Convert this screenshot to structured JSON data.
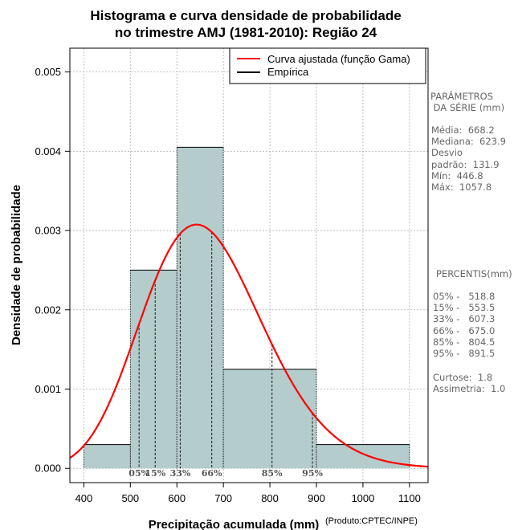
{
  "chart_data": {
    "type": "bar",
    "title_line1": "Histograma e curva densidade de probabilidade",
    "title_line2": "no trimestre AMJ (1981-2010): Região 24",
    "xlabel": "Precipitação acumulada (mm)",
    "ylabel": "Densidade de probabilidade",
    "credit": "(Produto:CPTEC/INPE)",
    "xlim": [
      370,
      1140
    ],
    "ylim": [
      -0.00018,
      0.0053
    ],
    "x_ticks": [
      400,
      500,
      600,
      700,
      800,
      900,
      1000,
      1100
    ],
    "x_tick_labels": [
      "400",
      "500",
      "600",
      "700",
      "800",
      "900",
      "1000",
      "1100"
    ],
    "y_ticks": [
      0,
      0.001,
      0.002,
      0.003,
      0.004,
      0.005
    ],
    "y_tick_labels": [
      "0.000",
      "0.001",
      "0.002",
      "0.003",
      "0.004",
      "0.005"
    ],
    "grid": true,
    "bins": [
      {
        "from": 400,
        "to": 500,
        "density": 0.0003
      },
      {
        "from": 500,
        "to": 600,
        "density": 0.0025
      },
      {
        "from": 600,
        "to": 700,
        "density": 0.00405
      },
      {
        "from": 700,
        "to": 900,
        "density": 0.00125
      },
      {
        "from": 900,
        "to": 1100,
        "density": 0.0003
      }
    ],
    "gamma_curve": {
      "mean": 668.2,
      "sd": 131.9
    },
    "legend": {
      "position": "top-right",
      "entries": [
        {
          "label": "Curva ajustada (função Gama)",
          "color": "#ff0000"
        },
        {
          "label": "Empírica",
          "color": "#000000"
        }
      ]
    },
    "percentile_markers": [
      {
        "label": "05%",
        "value": 518.8
      },
      {
        "label": "15%",
        "value": 553.5
      },
      {
        "label": "33%",
        "value": 607.3
      },
      {
        "label": "66%",
        "value": 675.0
      },
      {
        "label": "85%",
        "value": 804.5
      },
      {
        "label": "95%",
        "value": 891.5
      }
    ],
    "colors": {
      "bar_fill": "#b4cccc",
      "curve": "#ff0000",
      "grid": "#b0b0b0",
      "marker_text": "#555555"
    }
  },
  "side_panel": {
    "params_title_1": "PARÂMETROS",
    "params_title_2": " DA SÉRIE (mm)",
    "media": "Média:  668.2",
    "mediana": "Mediana:  623.9",
    "desvio_1": "Desvio",
    "desvio_2": "padrão:  131.9",
    "min": "Mín:  446.8",
    "max": "Máx:  1057.8",
    "perc_title": "PERCENTIS(mm)",
    "p05": "05% -   518.8",
    "p15": "15% -   553.5",
    "p33": "33% -   607.3",
    "p66": "66% -   675.0",
    "p85": "85% -   804.5",
    "p95": "95% -   891.5",
    "curtose": "Curtose:  1.8",
    "assimetria": "Assimetria:  1.0"
  }
}
